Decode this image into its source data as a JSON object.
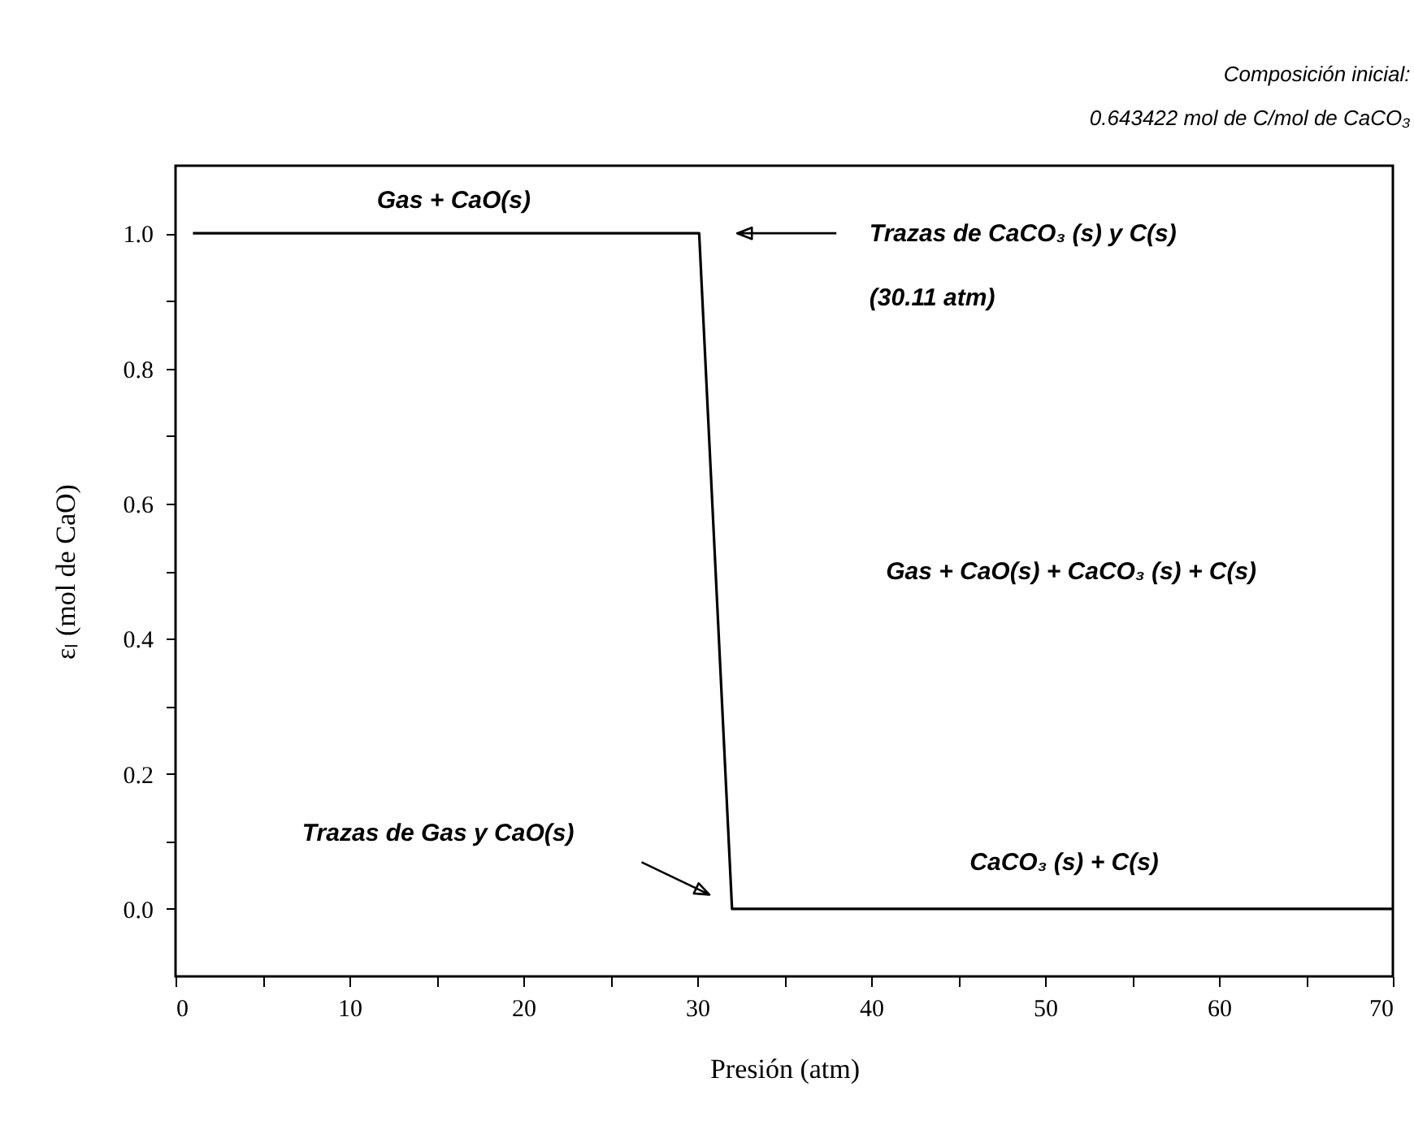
{
  "chart_data": {
    "type": "line",
    "title": "Composición inicial:",
    "subtitle": "0.643422 mol de C/mol de CaCO₃",
    "xlabel": "Presión (atm)",
    "ylabel": "εₗ (mol de CaO)",
    "x": [
      1,
      30.11,
      32,
      70
    ],
    "series": [
      {
        "color": "#000000",
        "values": [
          1.0,
          1.0,
          0.0,
          0.0
        ]
      }
    ],
    "xlim": [
      0,
      70
    ],
    "xticks": [
      0,
      {
        "value": 5,
        "label": null
      },
      10,
      {
        "value": 15,
        "label": null
      },
      20,
      {
        "value": 25,
        "label": null
      },
      30,
      {
        "value": 35,
        "label": null
      },
      40,
      {
        "value": 45,
        "label": null
      },
      50,
      {
        "value": 55,
        "label": null
      },
      60,
      {
        "value": 65,
        "label": null
      },
      70
    ],
    "ylim": [
      -0.1,
      1.1
    ],
    "yticks": [
      {
        "value": 0,
        "label": "0.0"
      },
      {
        "value": 0.1,
        "label": null
      },
      0.2,
      {
        "value": 0.3,
        "label": null
      },
      0.4,
      {
        "value": 0.5,
        "label": null
      },
      0.6,
      {
        "value": 0.7,
        "label": null
      },
      0.8,
      {
        "value": 0.9,
        "label": null
      },
      {
        "value": 1,
        "label": "1.0"
      }
    ],
    "annotations": [
      "Gas + CaO(s)",
      "Trazas de CaCO₃ (s) y C(s)",
      "(30.11 atm)",
      "Gas + CaO(s) + CaCO₃ (s) + C(s)",
      "Trazas de Gas y CaO(s)",
      "CaCO₃ (s) + C(s)"
    ],
    "grid": false,
    "marker": "none",
    "line_style": "solid"
  }
}
